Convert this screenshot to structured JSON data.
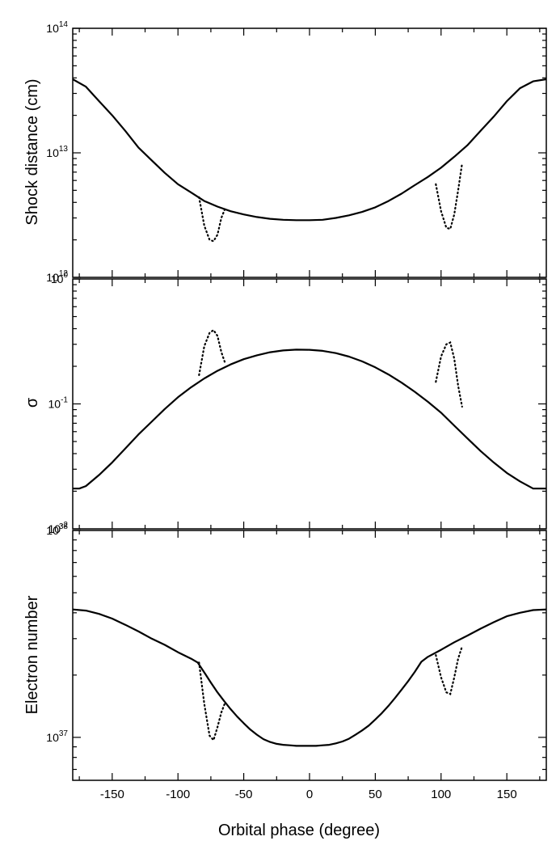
{
  "chart_data": [
    {
      "type": "line",
      "ylabel": "Shock distance (cm)",
      "xlim": [
        -180,
        180
      ],
      "ylim": [
        1000000000000.0,
        100000000000000.0
      ],
      "log_y": true,
      "yticks": [
        {
          "value": 1000000000000.0,
          "base": "10",
          "exp": "12"
        },
        {
          "value": 10000000000000.0,
          "base": "10",
          "exp": "13"
        },
        {
          "value": 100000000000000.0,
          "base": "10",
          "exp": "14"
        }
      ],
      "series": [
        {
          "style": "solid",
          "x": [
            -180,
            -170,
            -160,
            -150,
            -140,
            -130,
            -120,
            -110,
            -100,
            -90,
            -80,
            -70,
            -60,
            -50,
            -40,
            -30,
            -20,
            -10,
            0,
            10,
            20,
            30,
            40,
            50,
            60,
            70,
            80,
            90,
            100,
            110,
            120,
            130,
            140,
            150,
            160,
            170,
            180
          ],
          "y": [
            39000000000000.0,
            34000000000000.0,
            26000000000000.0,
            20000000000000.0,
            15000000000000.0,
            11000000000000.0,
            8700000000000.0,
            6900000000000.0,
            5600000000000.0,
            4800000000000.0,
            4100000000000.0,
            3700000000000.0,
            3400000000000.0,
            3200000000000.0,
            3050000000000.0,
            2950000000000.0,
            2900000000000.0,
            2880000000000.0,
            2880000000000.0,
            2900000000000.0,
            3000000000000.0,
            3150000000000.0,
            3350000000000.0,
            3650000000000.0,
            4100000000000.0,
            4700000000000.0,
            5500000000000.0,
            6400000000000.0,
            7600000000000.0,
            9300000000000.0,
            11500000000000.0,
            15000000000000.0,
            19500000000000.0,
            26000000000000.0,
            33000000000000.0,
            37500000000000.0,
            39000000000000.0
          ]
        },
        {
          "style": "dotted",
          "x": [
            -84,
            -80,
            -76,
            -73,
            -70,
            -67,
            -64
          ],
          "y": [
            4400000000000.0,
            2600000000000.0,
            2000000000000.0,
            1950000000000.0,
            2200000000000.0,
            3000000000000.0,
            3600000000000.0
          ]
        },
        {
          "style": "dotted",
          "x": [
            96,
            100,
            104,
            107,
            110,
            113,
            116
          ],
          "y": [
            5600000000000.0,
            3400000000000.0,
            2500000000000.0,
            2450000000000.0,
            3200000000000.0,
            5000000000000.0,
            8200000000000.0
          ]
        }
      ]
    },
    {
      "type": "line",
      "ylabel": "σ",
      "xlim": [
        -180,
        180
      ],
      "ylim": [
        0.01,
        1
      ],
      "log_y": true,
      "yticks": [
        {
          "value": 0.01,
          "base": "10",
          "exp": "-2"
        },
        {
          "value": 0.1,
          "base": "10",
          "exp": "-1"
        },
        {
          "value": 1,
          "base": "10",
          "exp": "0"
        }
      ],
      "series": [
        {
          "style": "solid",
          "x": [
            -180,
            -175,
            -170,
            -160,
            -150,
            -140,
            -130,
            -120,
            -110,
            -100,
            -90,
            -80,
            -70,
            -60,
            -50,
            -40,
            -30,
            -20,
            -10,
            0,
            10,
            20,
            30,
            40,
            50,
            60,
            70,
            80,
            90,
            100,
            110,
            120,
            130,
            140,
            150,
            160,
            170,
            175,
            180
          ],
          "y": [
            0.021,
            0.021,
            0.022,
            0.027,
            0.034,
            0.044,
            0.057,
            0.072,
            0.091,
            0.113,
            0.136,
            0.16,
            0.184,
            0.207,
            0.228,
            0.245,
            0.259,
            0.268,
            0.272,
            0.271,
            0.266,
            0.255,
            0.239,
            0.219,
            0.196,
            0.172,
            0.148,
            0.125,
            0.104,
            0.085,
            0.067,
            0.053,
            0.042,
            0.034,
            0.028,
            0.024,
            0.021,
            0.021,
            0.021
          ]
        },
        {
          "style": "dotted",
          "x": [
            -84,
            -80,
            -76,
            -73,
            -70,
            -67,
            -64
          ],
          "y": [
            0.17,
            0.29,
            0.37,
            0.39,
            0.35,
            0.26,
            0.21
          ]
        },
        {
          "style": "dotted",
          "x": [
            96,
            100,
            104,
            107,
            110,
            113,
            116
          ],
          "y": [
            0.15,
            0.24,
            0.3,
            0.31,
            0.23,
            0.14,
            0.095
          ]
        }
      ]
    },
    {
      "type": "line",
      "ylabel": "Electron number",
      "xlabel": "Orbital phase (degree)",
      "xlim": [
        -180,
        180
      ],
      "ylim": [
        6.2e+36,
        1e+38
      ],
      "log_y": true,
      "yticks": [
        {
          "value": 1e+37,
          "base": "10",
          "exp": "37"
        },
        {
          "value": 1e+38,
          "base": "10",
          "exp": "38"
        }
      ],
      "xticks": [
        -150,
        -100,
        -50,
        0,
        50,
        100,
        150
      ],
      "series": [
        {
          "style": "solid",
          "x": [
            -180,
            -170,
            -160,
            -150,
            -140,
            -130,
            -120,
            -110,
            -100,
            -90,
            -85,
            -80,
            -75,
            -70,
            -65,
            -60,
            -55,
            -50,
            -45,
            -40,
            -35,
            -30,
            -25,
            -20,
            -15,
            -10,
            -5,
            0,
            5,
            10,
            15,
            20,
            25,
            30,
            35,
            40,
            45,
            50,
            55,
            60,
            65,
            70,
            75,
            80,
            85,
            90,
            100,
            110,
            120,
            130,
            140,
            150,
            160,
            170,
            180
          ],
          "y": [
            4.15e+37,
            4.1e+37,
            3.95e+37,
            3.75e+37,
            3.5e+37,
            3.25e+37,
            3e+37,
            2.8e+37,
            2.58e+37,
            2.4e+37,
            2.3e+37,
            2.06e+37,
            1.84e+37,
            1.65e+37,
            1.5e+37,
            1.37e+37,
            1.26e+37,
            1.17e+37,
            1.09e+37,
            1.03e+37,
            9.8e+36,
            9.5e+36,
            9.3e+36,
            9.2e+36,
            9.15e+36,
            9.1e+36,
            9.1e+36,
            9.1e+36,
            9.1e+36,
            9.15e+36,
            9.2e+36,
            9.35e+36,
            9.55e+36,
            9.85e+36,
            1.03e+37,
            1.08e+37,
            1.14e+37,
            1.22e+37,
            1.31e+37,
            1.42e+37,
            1.55e+37,
            1.7e+37,
            1.87e+37,
            2.07e+37,
            2.32e+37,
            2.45e+37,
            2.65e+37,
            2.88e+37,
            3.1e+37,
            3.35e+37,
            3.6e+37,
            3.85e+37,
            4e+37,
            4.12e+37,
            4.15e+37
          ]
        },
        {
          "style": "dotted",
          "x": [
            -84,
            -80,
            -76,
            -73,
            -70,
            -67,
            -64
          ],
          "y": [
            2.3e+37,
            1.45e+37,
            1.02e+37,
            9.7e+36,
            1.12e+37,
            1.32e+37,
            1.48e+37
          ]
        },
        {
          "style": "dotted",
          "x": [
            96,
            100,
            104,
            107,
            110,
            113,
            116
          ],
          "y": [
            2.5e+37,
            1.95e+37,
            1.65e+37,
            1.62e+37,
            1.95e+37,
            2.4e+37,
            2.75e+37
          ]
        }
      ]
    }
  ]
}
